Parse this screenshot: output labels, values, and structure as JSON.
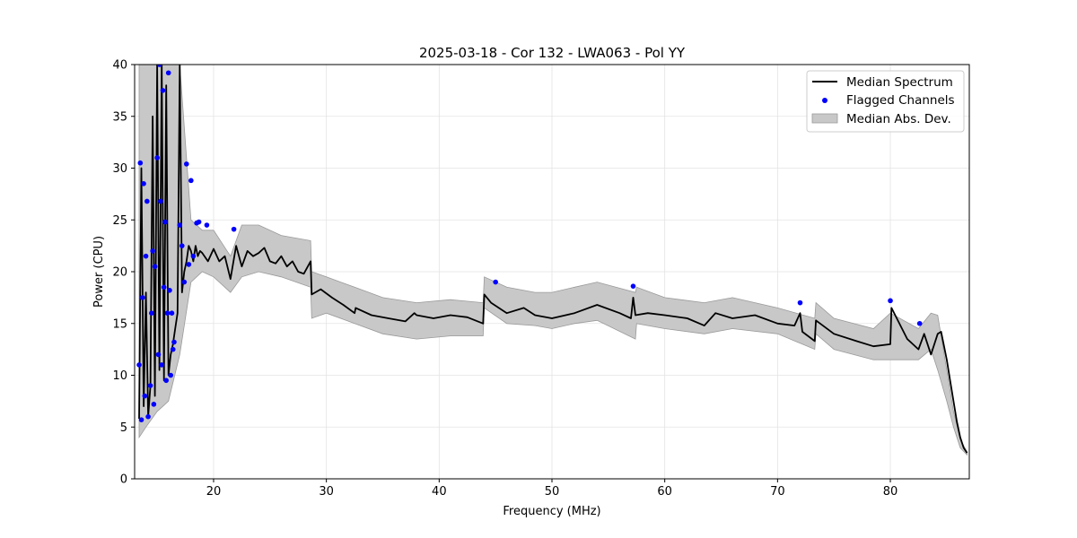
{
  "chart_data": {
    "type": "line",
    "title": "2025-03-18 - Cor 132 - LWA063 - Pol YY",
    "xlabel": "Frequency (MHz)",
    "ylabel": "Power (CPU)",
    "xlim": [
      13,
      87
    ],
    "ylim": [
      0,
      40
    ],
    "xticks": [
      20,
      30,
      40,
      50,
      60,
      70,
      80
    ],
    "yticks": [
      0,
      5,
      10,
      15,
      20,
      25,
      30,
      35,
      40
    ],
    "grid": true,
    "legend_position": "top-right",
    "colors": {
      "median": "#000000",
      "flagged": "#0000ff",
      "mad_fill": "#c8c8c8",
      "mad_edge": "#9a9a9a"
    },
    "series": [
      {
        "name": "Median Spectrum",
        "kind": "line",
        "x": [
          13.4,
          13.6,
          13.8,
          14.0,
          14.2,
          14.4,
          14.6,
          14.8,
          15.0,
          15.2,
          15.4,
          15.6,
          15.8,
          16.0,
          16.2,
          16.4,
          16.6,
          16.8,
          17.0,
          17.2,
          17.4,
          17.6,
          17.8,
          18.0,
          18.2,
          18.4,
          18.6,
          18.8,
          19.0,
          19.5,
          20.0,
          20.5,
          21.0,
          21.5,
          22.0,
          22.5,
          23.0,
          23.5,
          24.0,
          24.5,
          25.0,
          25.5,
          26.0,
          26.5,
          27.0,
          27.5,
          28.0,
          28.6,
          28.7,
          29.5,
          30.5,
          31.5,
          32.5,
          32.6,
          34.0,
          35.5,
          37.0,
          37.8,
          38.0,
          39.5,
          41.0,
          42.5,
          43.9,
          44.0,
          44.6,
          46.0,
          47.5,
          48.5,
          50.0,
          52.0,
          54.0,
          56.0,
          57.0,
          57.2,
          57.4,
          58.5,
          60.0,
          62.0,
          63.5,
          64.5,
          66.0,
          68.0,
          70.0,
          71.5,
          72.0,
          72.2,
          73.3,
          73.4,
          75.0,
          77.0,
          78.5,
          80.0,
          80.1,
          81.5,
          82.5,
          83.0,
          83.6,
          84.2,
          84.5,
          85.0,
          85.3,
          85.6,
          85.9,
          86.2,
          86.5,
          86.8
        ],
        "y": [
          5.8,
          30.0,
          7.0,
          18.0,
          6.0,
          9.0,
          35.0,
          8.0,
          40.0,
          10.5,
          40.0,
          9.5,
          38.0,
          10.0,
          12.0,
          13.0,
          14.5,
          16.0,
          40.0,
          18.0,
          20.0,
          21.0,
          22.5,
          22.0,
          21.0,
          22.5,
          21.5,
          22.0,
          21.8,
          21.0,
          22.2,
          21.0,
          21.5,
          19.3,
          22.5,
          20.5,
          22.0,
          21.5,
          21.8,
          22.3,
          21.0,
          20.8,
          21.5,
          20.5,
          21.0,
          20.0,
          19.8,
          21.0,
          17.8,
          18.3,
          17.5,
          16.8,
          16.0,
          16.5,
          15.8,
          15.5,
          15.2,
          16.0,
          15.8,
          15.5,
          15.8,
          15.6,
          15.0,
          17.8,
          17.0,
          16.0,
          16.5,
          15.8,
          15.5,
          16.0,
          16.8,
          16.0,
          15.5,
          17.5,
          15.8,
          16.0,
          15.8,
          15.5,
          14.8,
          16.0,
          15.5,
          15.8,
          15.0,
          14.8,
          16.0,
          14.2,
          13.3,
          15.3,
          14.0,
          13.3,
          12.8,
          13.0,
          16.5,
          13.5,
          12.5,
          14.0,
          12.0,
          14.0,
          14.2,
          11.5,
          9.5,
          7.5,
          5.5,
          4.0,
          3.0,
          2.5
        ]
      },
      {
        "name": "Flagged Channels",
        "kind": "scatter",
        "x": [
          13.4,
          13.5,
          13.6,
          13.7,
          13.8,
          13.9,
          14.0,
          14.1,
          14.2,
          14.4,
          14.5,
          14.6,
          14.7,
          14.8,
          15.0,
          15.1,
          15.2,
          15.3,
          15.4,
          15.5,
          15.6,
          15.7,
          15.8,
          15.9,
          16.0,
          16.1,
          16.2,
          16.3,
          16.4,
          16.5,
          17.0,
          17.2,
          17.4,
          17.6,
          17.8,
          18.0,
          18.2,
          18.5,
          18.7,
          19.4,
          21.8,
          45.0,
          57.2,
          72.0,
          80.0,
          82.6
        ],
        "y": [
          11.0,
          30.5,
          5.7,
          17.5,
          28.5,
          8.0,
          21.5,
          26.8,
          6.0,
          9.0,
          16.0,
          22.0,
          7.2,
          20.5,
          31.0,
          12.0,
          40.0,
          26.8,
          11.0,
          37.5,
          18.5,
          24.8,
          9.5,
          16.0,
          39.2,
          18.2,
          10.0,
          16.0,
          12.5,
          13.2,
          24.5,
          22.5,
          19.0,
          30.4,
          20.7,
          28.8,
          21.5,
          24.7,
          24.8,
          24.5,
          24.1,
          19.0,
          18.6,
          17.0,
          17.2,
          15.0
        ]
      },
      {
        "name": "Median Abs. Dev.",
        "kind": "band",
        "x": [
          13.4,
          14.0,
          15.0,
          16.0,
          17.0,
          18.0,
          19.0,
          20.0,
          21.5,
          22.5,
          24.0,
          26.0,
          28.6,
          28.7,
          30.0,
          32.5,
          35.0,
          38.0,
          41.0,
          43.9,
          44.0,
          46.0,
          48.5,
          50.0,
          52.0,
          54.0,
          57.4,
          57.5,
          60.0,
          63.5,
          66.0,
          70.0,
          73.3,
          73.4,
          75.0,
          78.5,
          80.0,
          82.5,
          83.6,
          84.2,
          85.0,
          85.6,
          86.2,
          86.8
        ],
        "lower": [
          4.0,
          5.0,
          6.5,
          7.5,
          12.0,
          19.0,
          20.0,
          19.5,
          18.0,
          19.5,
          20.0,
          19.5,
          18.5,
          15.5,
          16.0,
          15.0,
          14.0,
          13.5,
          13.8,
          13.8,
          16.5,
          15.0,
          14.8,
          14.5,
          15.0,
          15.3,
          13.5,
          15.0,
          14.5,
          14.0,
          14.5,
          14.0,
          12.5,
          14.0,
          12.5,
          11.5,
          11.5,
          11.5,
          12.5,
          10.5,
          7.5,
          5.0,
          3.0,
          2.3
        ],
        "upper": [
          40.0,
          40.0,
          40.0,
          40.0,
          40.0,
          25.0,
          24.0,
          24.0,
          21.5,
          24.5,
          24.5,
          23.5,
          23.0,
          20.0,
          19.5,
          18.5,
          17.5,
          17.0,
          17.3,
          17.0,
          19.5,
          18.5,
          18.0,
          18.0,
          18.5,
          19.0,
          18.0,
          18.5,
          17.5,
          17.0,
          17.5,
          16.5,
          15.5,
          17.0,
          15.5,
          14.5,
          16.0,
          14.5,
          16.0,
          15.8,
          10.5,
          6.5,
          3.8,
          2.6
        ]
      }
    ]
  }
}
